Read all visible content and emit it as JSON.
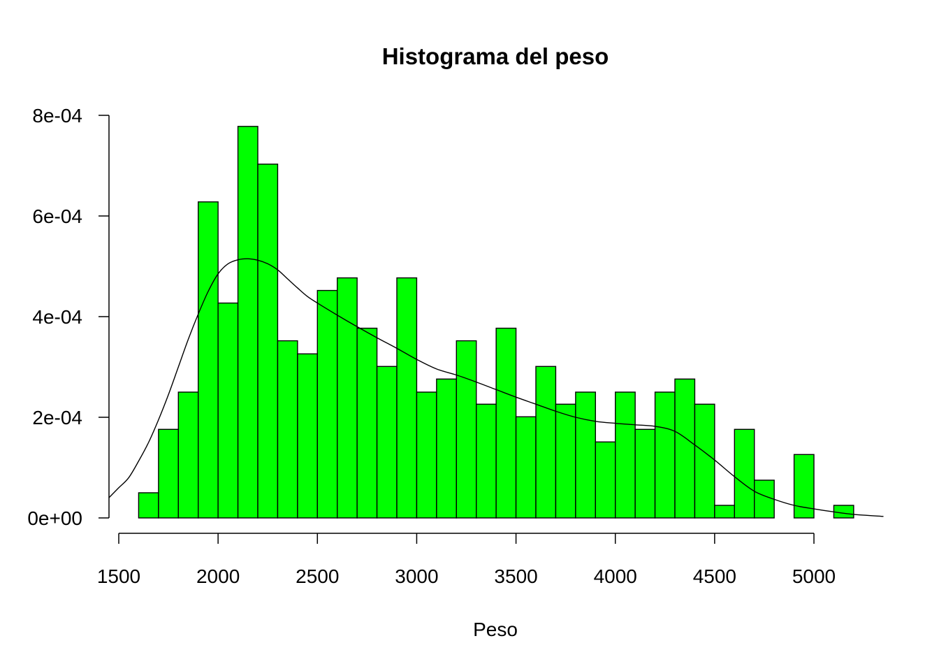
{
  "chart_data": {
    "type": "bar",
    "title": "Histograma del peso",
    "xlabel": "Peso",
    "ylabel": "",
    "bar_color": "#00ff00",
    "bar_edge_color": "#000000",
    "line_color": "#000000",
    "xlim": [
      1500,
      5350
    ],
    "ylim": [
      0,
      0.0008
    ],
    "x_ticks": [
      1500,
      2000,
      2500,
      3000,
      3500,
      4000,
      4500,
      5000
    ],
    "x_tick_labels": [
      "1500",
      "2000",
      "2500",
      "3000",
      "3500",
      "4000",
      "4500",
      "5000"
    ],
    "y_ticks": [
      0,
      0.0002,
      0.0004,
      0.0006,
      0.0008
    ],
    "y_tick_labels": [
      "0e+00",
      "2e-04",
      "4e-04",
      "6e-04",
      "8e-04"
    ],
    "bin_edges": [
      1600,
      1700,
      1800,
      1900,
      2000,
      2100,
      2200,
      2300,
      2400,
      2500,
      2600,
      2700,
      2800,
      2900,
      3000,
      3100,
      3200,
      3300,
      3400,
      3500,
      3600,
      3700,
      3800,
      3900,
      4000,
      4100,
      4200,
      4300,
      4400,
      4500,
      4600,
      4700,
      4800,
      4900,
      5000,
      5100,
      5200
    ],
    "bin_density": [
      5e-05,
      0.000176,
      0.00025,
      0.000628,
      0.000427,
      0.000778,
      0.000703,
      0.000352,
      0.000326,
      0.000452,
      0.000477,
      0.000377,
      0.000301,
      0.000477,
      0.00025,
      0.000276,
      0.000352,
      0.000226,
      0.000377,
      0.000201,
      0.000301,
      0.000226,
      0.00025,
      0.000151,
      0.00025,
      0.000176,
      0.00025,
      0.000276,
      0.000226,
      2.5e-05,
      0.000176,
      7.5e-05,
      0,
      0.000126,
      0,
      2.5e-05
    ],
    "density_curve": {
      "name": "",
      "x": [
        1450,
        1500,
        1550,
        1600,
        1650,
        1700,
        1750,
        1800,
        1850,
        1900,
        1950,
        2000,
        2050,
        2100,
        2150,
        2200,
        2250,
        2300,
        2350,
        2400,
        2450,
        2500,
        2600,
        2700,
        2800,
        2900,
        3000,
        3100,
        3200,
        3300,
        3400,
        3500,
        3600,
        3700,
        3800,
        3900,
        4000,
        4100,
        4200,
        4300,
        4400,
        4500,
        4600,
        4700,
        4800,
        4900,
        5000,
        5100,
        5200,
        5350
      ],
      "y": [
        4e-05,
        6e-05,
        8e-05,
        0.000113,
        0.00015,
        0.000195,
        0.000245,
        0.0003,
        0.000355,
        0.000405,
        0.00045,
        0.000485,
        0.000505,
        0.000513,
        0.000515,
        0.000512,
        0.000505,
        0.000493,
        0.000475,
        0.000457,
        0.00044,
        0.000427,
        0.000403,
        0.00038,
        0.000358,
        0.000337,
        0.000315,
        0.000296,
        0.000284,
        0.00027,
        0.000255,
        0.00024,
        0.000226,
        0.000212,
        0.0002,
        0.000192,
        0.000188,
        0.000185,
        0.000182,
        0.000172,
        0.000145,
        0.000115,
        8.2e-05,
        5.3e-05,
        3.7e-05,
        2.5e-05,
        1.8e-05,
        1.2e-05,
        7e-06,
        3e-06
      ]
    }
  }
}
